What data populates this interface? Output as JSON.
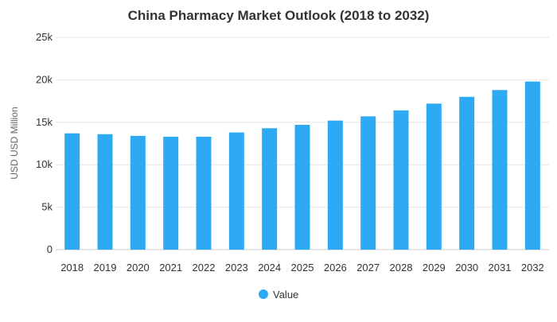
{
  "chart_data": {
    "type": "bar",
    "title": "China Pharmacy Market Outlook (2018 to 2032)",
    "xlabel": "",
    "ylabel": "USD USD Million",
    "categories": [
      "2018",
      "2019",
      "2020",
      "2021",
      "2022",
      "2023",
      "2024",
      "2025",
      "2026",
      "2027",
      "2028",
      "2029",
      "2030",
      "2031",
      "2032"
    ],
    "series": [
      {
        "name": "Value",
        "color": "#2eaaf5",
        "values": [
          13700,
          13600,
          13400,
          13300,
          13300,
          13800,
          14300,
          14700,
          15200,
          15700,
          16400,
          17200,
          18000,
          18800,
          19800
        ]
      }
    ],
    "ylim": [
      0,
      25000
    ],
    "yticks": [
      0,
      5000,
      10000,
      15000,
      20000,
      25000
    ],
    "ytick_labels": [
      "0",
      "5k",
      "10k",
      "15k",
      "20k",
      "25k"
    ],
    "grid": true,
    "legend_position": "bottom-center"
  }
}
